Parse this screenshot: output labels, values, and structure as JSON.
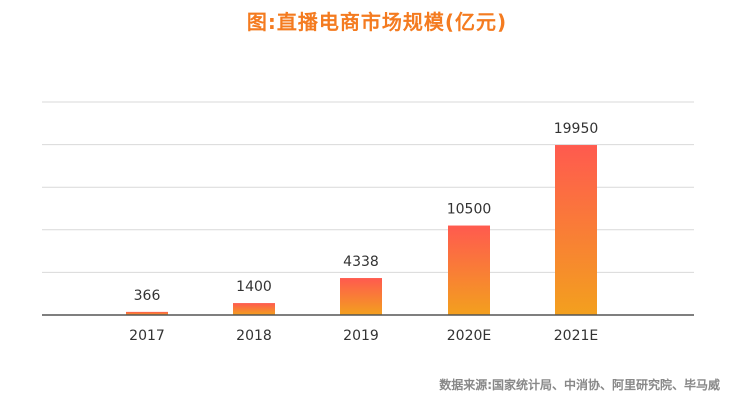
{
  "header": {
    "title": "图:直播电商市场规模(亿元)"
  },
  "footer": {
    "source": "数据来源:国家统计局、中消协、阿里研究院、毕马威"
  },
  "colors": {
    "title": "#f47b20",
    "bar_top": "#ff5a4f",
    "bar_bottom": "#f3a01e",
    "gridline": "#d9d9d9",
    "axis": "#555555"
  },
  "chart_data": {
    "type": "bar",
    "title": "图:直播电商市场规模(亿元)",
    "xlabel": "",
    "ylabel": "",
    "categories": [
      "2017",
      "2018",
      "2019",
      "2020E",
      "2021E"
    ],
    "values": [
      366,
      1400,
      4338,
      10500,
      19950
    ],
    "ylim": [
      0,
      25000
    ],
    "grid": true,
    "legend": "none"
  }
}
